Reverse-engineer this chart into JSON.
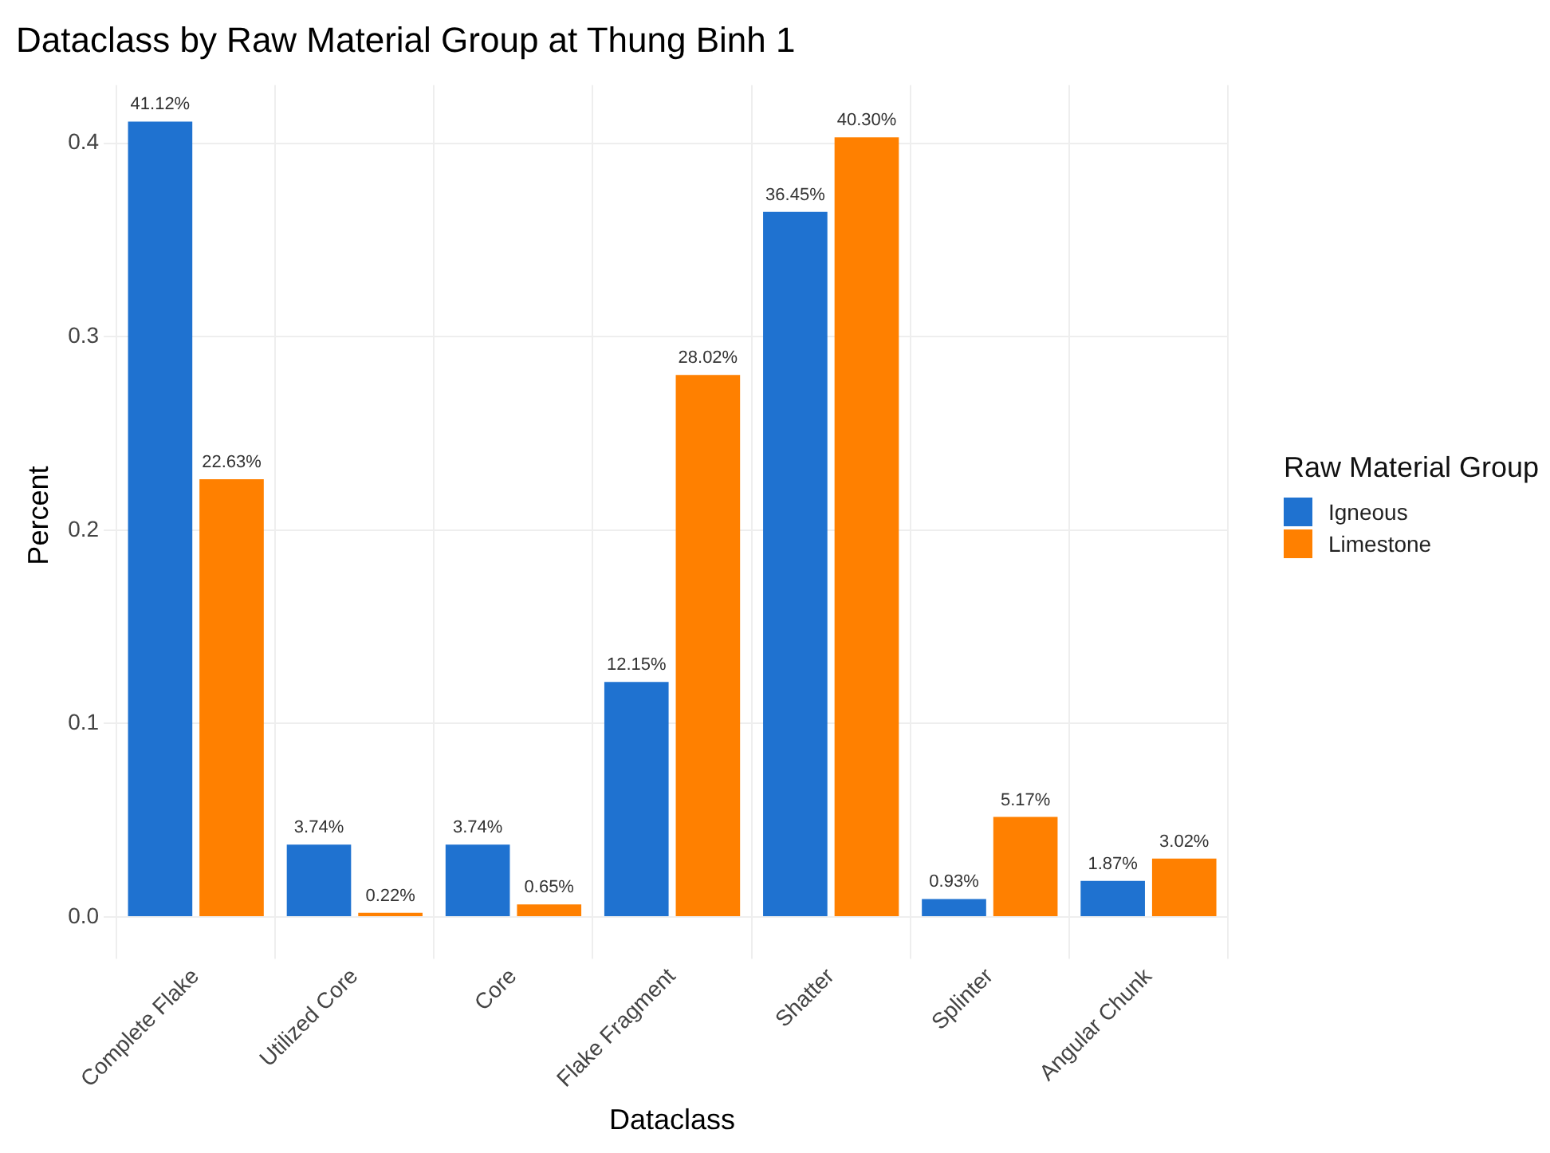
{
  "chart_data": {
    "type": "bar",
    "title": "Dataclass by Raw Material Group at Thung Binh 1",
    "xlabel": "Dataclass",
    "ylabel": "Percent",
    "legend_title": "Raw Material Group",
    "legend": "right",
    "grid": true,
    "categories": [
      "Complete Flake",
      "Utilized Core",
      "Core",
      "Flake Fragment",
      "Shatter",
      "Splinter",
      "Angular Chunk"
    ],
    "series": [
      {
        "name": "Igneous",
        "color": "#1f72d0",
        "values": [
          0.4112,
          0.0374,
          0.0374,
          0.1215,
          0.3645,
          0.0093,
          0.0187
        ],
        "value_labels": [
          "41.12%",
          "3.74%",
          "3.74%",
          "12.15%",
          "36.45%",
          "0.93%",
          "1.87%"
        ]
      },
      {
        "name": "Limestone",
        "color": "#ff8000",
        "values": [
          0.2263,
          0.0022,
          0.0065,
          0.2802,
          0.403,
          0.0517,
          0.0302
        ],
        "value_labels": [
          "22.63%",
          "0.22%",
          "0.65%",
          "28.02%",
          "40.30%",
          "5.17%",
          "3.02%"
        ]
      }
    ],
    "ylim": [
      -0.015,
      0.43
    ],
    "yticks": [
      {
        "value": 0,
        "label": "0.0"
      },
      {
        "value": 0.1,
        "label": "0.1"
      },
      {
        "value": 0.2,
        "label": "0.2"
      },
      {
        "value": 0.3,
        "label": "0.3"
      },
      {
        "value": 0.4,
        "label": "0.4"
      }
    ]
  }
}
